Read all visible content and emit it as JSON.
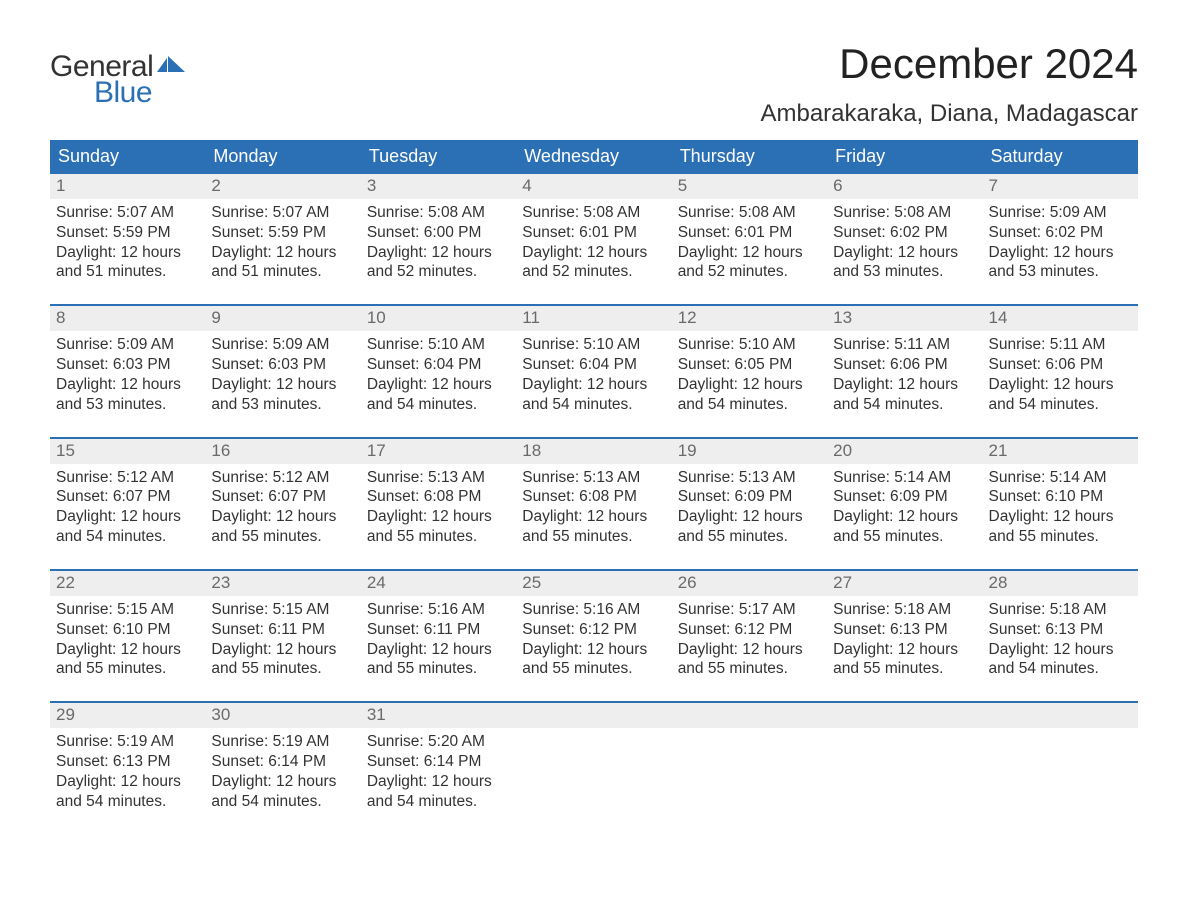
{
  "logo": {
    "text1": "General",
    "text2": "Blue",
    "shape_color": "#2b6fb5"
  },
  "title": "December 2024",
  "location": "Ambarakaraka, Diana, Madagascar",
  "colors": {
    "header_bg": "#2b6fb5",
    "header_text": "#ffffff",
    "daynum_bg": "#eeeeee",
    "daynum_text": "#6a6a6a",
    "body_text": "#333333",
    "row_border": "#2b6fb5",
    "page_bg": "#ffffff"
  },
  "typography": {
    "title_fontsize": 42,
    "location_fontsize": 24,
    "dayheader_fontsize": 18,
    "daynum_fontsize": 17,
    "body_fontsize": 15.5,
    "logo_fontsize": 30
  },
  "day_names": [
    "Sunday",
    "Monday",
    "Tuesday",
    "Wednesday",
    "Thursday",
    "Friday",
    "Saturday"
  ],
  "labels": {
    "sunrise": "Sunrise:",
    "sunset": "Sunset:",
    "daylight": "Daylight:"
  },
  "weeks": [
    [
      {
        "n": "1",
        "sr": "5:07 AM",
        "ss": "5:59 PM",
        "dl": "12 hours and 51 minutes."
      },
      {
        "n": "2",
        "sr": "5:07 AM",
        "ss": "5:59 PM",
        "dl": "12 hours and 51 minutes."
      },
      {
        "n": "3",
        "sr": "5:08 AM",
        "ss": "6:00 PM",
        "dl": "12 hours and 52 minutes."
      },
      {
        "n": "4",
        "sr": "5:08 AM",
        "ss": "6:01 PM",
        "dl": "12 hours and 52 minutes."
      },
      {
        "n": "5",
        "sr": "5:08 AM",
        "ss": "6:01 PM",
        "dl": "12 hours and 52 minutes."
      },
      {
        "n": "6",
        "sr": "5:08 AM",
        "ss": "6:02 PM",
        "dl": "12 hours and 53 minutes."
      },
      {
        "n": "7",
        "sr": "5:09 AM",
        "ss": "6:02 PM",
        "dl": "12 hours and 53 minutes."
      }
    ],
    [
      {
        "n": "8",
        "sr": "5:09 AM",
        "ss": "6:03 PM",
        "dl": "12 hours and 53 minutes."
      },
      {
        "n": "9",
        "sr": "5:09 AM",
        "ss": "6:03 PM",
        "dl": "12 hours and 53 minutes."
      },
      {
        "n": "10",
        "sr": "5:10 AM",
        "ss": "6:04 PM",
        "dl": "12 hours and 54 minutes."
      },
      {
        "n": "11",
        "sr": "5:10 AM",
        "ss": "6:04 PM",
        "dl": "12 hours and 54 minutes."
      },
      {
        "n": "12",
        "sr": "5:10 AM",
        "ss": "6:05 PM",
        "dl": "12 hours and 54 minutes."
      },
      {
        "n": "13",
        "sr": "5:11 AM",
        "ss": "6:06 PM",
        "dl": "12 hours and 54 minutes."
      },
      {
        "n": "14",
        "sr": "5:11 AM",
        "ss": "6:06 PM",
        "dl": "12 hours and 54 minutes."
      }
    ],
    [
      {
        "n": "15",
        "sr": "5:12 AM",
        "ss": "6:07 PM",
        "dl": "12 hours and 54 minutes."
      },
      {
        "n": "16",
        "sr": "5:12 AM",
        "ss": "6:07 PM",
        "dl": "12 hours and 55 minutes."
      },
      {
        "n": "17",
        "sr": "5:13 AM",
        "ss": "6:08 PM",
        "dl": "12 hours and 55 minutes."
      },
      {
        "n": "18",
        "sr": "5:13 AM",
        "ss": "6:08 PM",
        "dl": "12 hours and 55 minutes."
      },
      {
        "n": "19",
        "sr": "5:13 AM",
        "ss": "6:09 PM",
        "dl": "12 hours and 55 minutes."
      },
      {
        "n": "20",
        "sr": "5:14 AM",
        "ss": "6:09 PM",
        "dl": "12 hours and 55 minutes."
      },
      {
        "n": "21",
        "sr": "5:14 AM",
        "ss": "6:10 PM",
        "dl": "12 hours and 55 minutes."
      }
    ],
    [
      {
        "n": "22",
        "sr": "5:15 AM",
        "ss": "6:10 PM",
        "dl": "12 hours and 55 minutes."
      },
      {
        "n": "23",
        "sr": "5:15 AM",
        "ss": "6:11 PM",
        "dl": "12 hours and 55 minutes."
      },
      {
        "n": "24",
        "sr": "5:16 AM",
        "ss": "6:11 PM",
        "dl": "12 hours and 55 minutes."
      },
      {
        "n": "25",
        "sr": "5:16 AM",
        "ss": "6:12 PM",
        "dl": "12 hours and 55 minutes."
      },
      {
        "n": "26",
        "sr": "5:17 AM",
        "ss": "6:12 PM",
        "dl": "12 hours and 55 minutes."
      },
      {
        "n": "27",
        "sr": "5:18 AM",
        "ss": "6:13 PM",
        "dl": "12 hours and 55 minutes."
      },
      {
        "n": "28",
        "sr": "5:18 AM",
        "ss": "6:13 PM",
        "dl": "12 hours and 54 minutes."
      }
    ],
    [
      {
        "n": "29",
        "sr": "5:19 AM",
        "ss": "6:13 PM",
        "dl": "12 hours and 54 minutes."
      },
      {
        "n": "30",
        "sr": "5:19 AM",
        "ss": "6:14 PM",
        "dl": "12 hours and 54 minutes."
      },
      {
        "n": "31",
        "sr": "5:20 AM",
        "ss": "6:14 PM",
        "dl": "12 hours and 54 minutes."
      },
      null,
      null,
      null,
      null
    ]
  ]
}
